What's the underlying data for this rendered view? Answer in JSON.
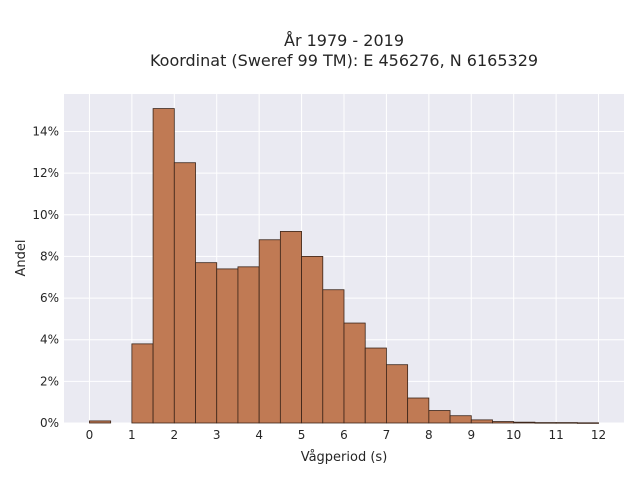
{
  "chart_data": {
    "type": "bar",
    "title_line1": "År 1979 - 2019",
    "title_line2": "Koordinat (Sweref 99 TM): E 456276, N 6165329",
    "xlabel": "Vågperiod (s)",
    "ylabel": "Andel",
    "bin_width": 0.5,
    "bins": [
      {
        "start": 0.0,
        "value": 0.1
      },
      {
        "start": 0.5,
        "value": 0.0
      },
      {
        "start": 1.0,
        "value": 3.8
      },
      {
        "start": 1.5,
        "value": 15.1
      },
      {
        "start": 2.0,
        "value": 12.5
      },
      {
        "start": 2.5,
        "value": 7.7
      },
      {
        "start": 3.0,
        "value": 7.4
      },
      {
        "start": 3.5,
        "value": 7.5
      },
      {
        "start": 4.0,
        "value": 8.8
      },
      {
        "start": 4.5,
        "value": 9.2
      },
      {
        "start": 5.0,
        "value": 8.0
      },
      {
        "start": 5.5,
        "value": 6.4
      },
      {
        "start": 6.0,
        "value": 4.8
      },
      {
        "start": 6.5,
        "value": 3.6
      },
      {
        "start": 7.0,
        "value": 2.8
      },
      {
        "start": 7.5,
        "value": 1.2
      },
      {
        "start": 8.0,
        "value": 0.6
      },
      {
        "start": 8.5,
        "value": 0.35
      },
      {
        "start": 9.0,
        "value": 0.15
      },
      {
        "start": 9.5,
        "value": 0.07
      },
      {
        "start": 10.0,
        "value": 0.04
      },
      {
        "start": 10.5,
        "value": 0.02
      },
      {
        "start": 11.0,
        "value": 0.02
      },
      {
        "start": 11.5,
        "value": 0.01
      }
    ],
    "xlim": [
      -0.6,
      12.6
    ],
    "ylim": [
      0,
      15.8
    ],
    "x_ticks": [
      0,
      1,
      2,
      3,
      4,
      5,
      6,
      7,
      8,
      9,
      10,
      11,
      12
    ],
    "y_ticks": [
      0,
      2,
      4,
      6,
      8,
      10,
      12,
      14
    ],
    "y_tick_labels": [
      "0%",
      "2%",
      "4%",
      "6%",
      "8%",
      "10%",
      "12%",
      "14%"
    ],
    "grid": true,
    "colors": {
      "bar": "#c07a54",
      "edge": "#3b2418",
      "background": "#eaeaf2",
      "grid": "#ffffff"
    }
  }
}
